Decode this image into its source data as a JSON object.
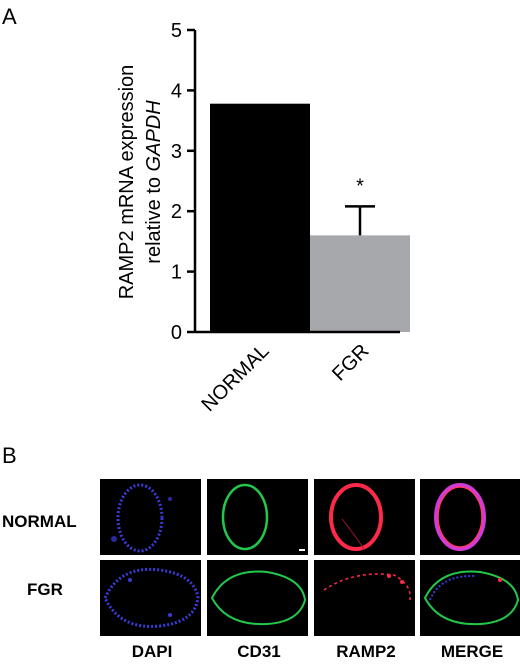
{
  "panel_a": {
    "letter": "A"
  },
  "panel_b": {
    "letter": "B",
    "rows": [
      "NORMAL",
      "FGR"
    ],
    "columns": [
      "DAPI",
      "CD31",
      "RAMP2",
      "MERGE"
    ]
  },
  "colors": {
    "normal_bar": "#000000",
    "fgr_bar": "#a7a8ac",
    "dapi": "#3a3ad8",
    "cd31": "#22c84a",
    "ramp2": "#ff2a4a",
    "merge": "#d03ad8"
  },
  "chart_data": {
    "type": "bar",
    "categories": [
      "NORMAL",
      "FGR"
    ],
    "values": [
      3.78,
      1.6
    ],
    "error_upper": [
      null,
      0.48
    ],
    "significance": [
      "",
      "*"
    ],
    "ylabel_line1": "RAMP2 mRNA expression",
    "ylabel_line2_prefix": "relative to ",
    "ylabel_line2_italic": "GAPDH",
    "ylim": [
      0,
      5
    ],
    "yticks": [
      "0",
      "1",
      "2",
      "3",
      "4",
      "5"
    ]
  }
}
